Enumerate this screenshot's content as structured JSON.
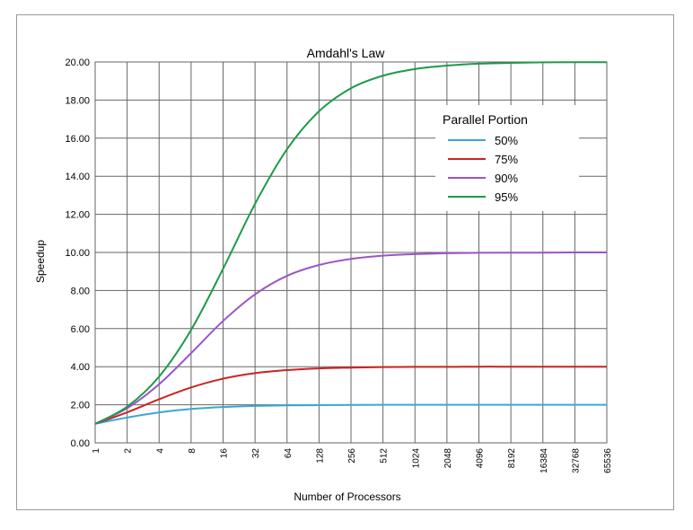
{
  "chart_data": {
    "type": "line",
    "title": "Amdahl's Law",
    "xlabel": "Number of Processors",
    "ylabel": "Speedup",
    "x": [
      "1",
      "2",
      "4",
      "8",
      "16",
      "32",
      "64",
      "128",
      "256",
      "512",
      "1024",
      "2048",
      "4096",
      "8192",
      "16384",
      "32768",
      "65536"
    ],
    "ylim": [
      0,
      20
    ],
    "yticks": [
      "0.00",
      "2.00",
      "4.00",
      "6.00",
      "8.00",
      "10.00",
      "12.00",
      "14.00",
      "16.00",
      "18.00",
      "20.00"
    ],
    "grid": true,
    "legend": {
      "title": "Parallel Portion",
      "placement": "top-right"
    },
    "series": [
      {
        "name": "50%",
        "color": "#3aa6d8",
        "values": [
          1.0,
          1.33,
          1.6,
          1.78,
          1.88,
          1.94,
          1.97,
          1.98,
          1.99,
          2.0,
          2.0,
          2.0,
          2.0,
          2.0,
          2.0,
          2.0,
          2.0
        ]
      },
      {
        "name": "75%",
        "color": "#cc2222",
        "values": [
          1.0,
          1.6,
          2.29,
          2.91,
          3.37,
          3.66,
          3.82,
          3.91,
          3.95,
          3.98,
          3.99,
          3.99,
          4.0,
          4.0,
          4.0,
          4.0,
          4.0
        ]
      },
      {
        "name": "90%",
        "color": "#9b55c7",
        "values": [
          1.0,
          1.82,
          3.08,
          4.71,
          6.4,
          7.8,
          8.77,
          9.34,
          9.66,
          9.83,
          9.91,
          9.96,
          9.98,
          9.99,
          9.99,
          10.0,
          10.0
        ]
      },
      {
        "name": "95%",
        "color": "#1e9a4a",
        "values": [
          1.0,
          1.9,
          3.48,
          5.93,
          9.14,
          12.55,
          15.42,
          17.41,
          18.62,
          19.28,
          19.63,
          19.81,
          19.91,
          19.95,
          19.98,
          19.99,
          19.99
        ]
      }
    ]
  }
}
